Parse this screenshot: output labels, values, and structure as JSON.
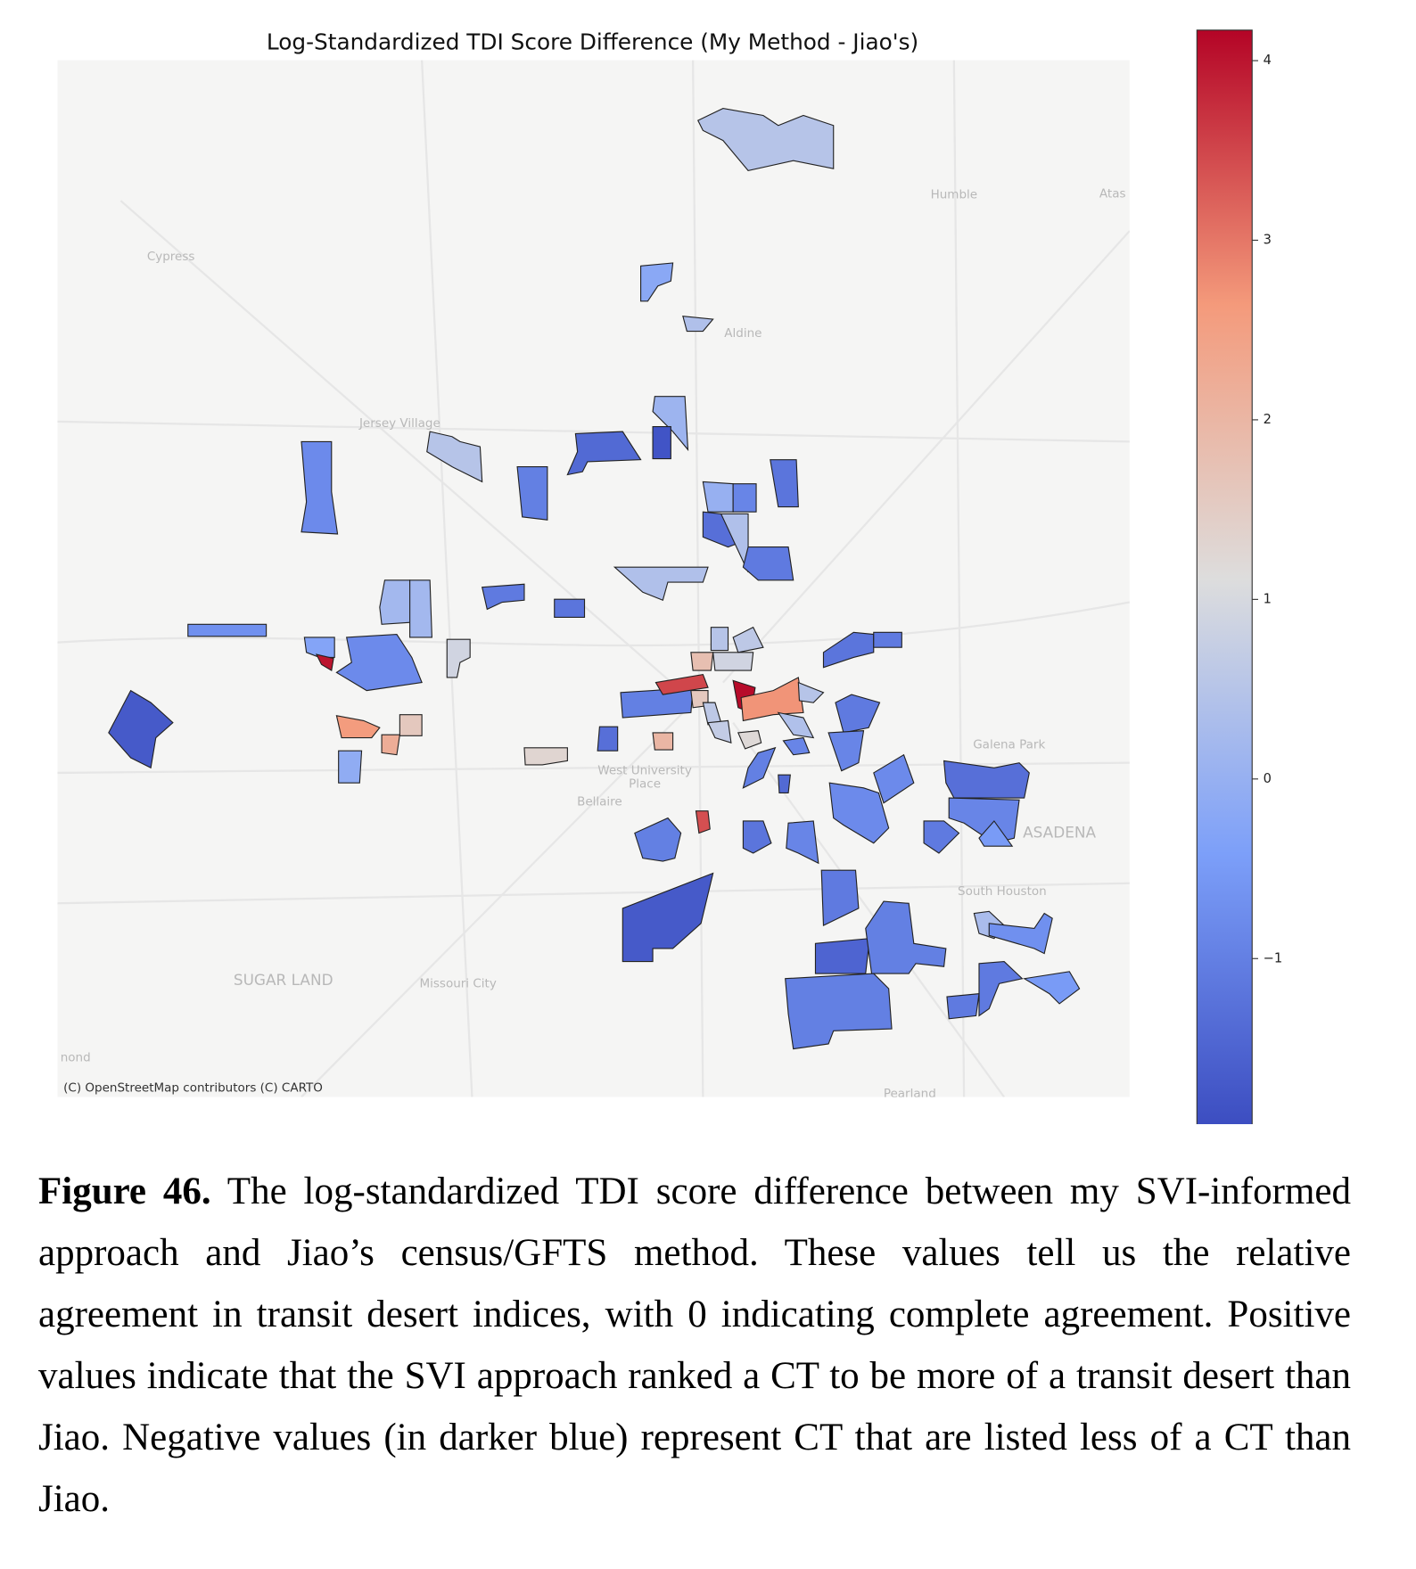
{
  "chart_data": {
    "type": "choropleth",
    "title": "Log-Standardized TDI Score Difference (My Method - Jiao's)",
    "colormap": "coolwarm",
    "clim": [
      -1.95,
      4.17
    ],
    "cticks": [
      {
        "value": -1,
        "label": "−1"
      },
      0,
      1,
      2,
      3,
      4
    ],
    "values": [
      0.5,
      -0.2,
      0.4,
      0.1,
      -1.8,
      -1.4,
      0.5,
      -0.8,
      -1.0,
      -1.2,
      0.0,
      -0.9,
      -1.3,
      0.4,
      -1.1,
      0.4,
      -1.1,
      -1.2,
      0.2,
      0.2,
      -0.7,
      -0.3,
      4.0,
      -0.8,
      0.9,
      -1.7,
      2.6,
      1.6,
      2.2,
      -0.1,
      1.3,
      -1.3,
      2.0,
      -1.0,
      3.5,
      1.8,
      0.9,
      0.5,
      0.6,
      4.1,
      1.6,
      0.6,
      0.7,
      2.7,
      0.5,
      0.4,
      -0.9,
      1.2,
      -1.0,
      -1.4,
      -1.2,
      -1.1,
      -1.1,
      -0.9,
      -0.8,
      -0.8,
      -1.3,
      -0.9,
      -0.5,
      -1.1,
      -1.0,
      3.4,
      -1.2,
      -0.9,
      -1.1,
      -1.7,
      -1.5,
      -1.0,
      -1.0,
      0.3,
      -0.7,
      -1.1,
      -0.5,
      -1.1
    ],
    "place_labels": [
      "Humble",
      "Atas",
      "Cypress",
      "Aldine",
      "Jersey Village",
      "West University",
      "Place",
      "Bellaire",
      "Galena Park",
      "ASADENA",
      "South Houston",
      "SUGAR LAND",
      "Missouri City",
      "Pearland",
      "nond"
    ],
    "attribution": "(C) OpenStreetMap contributors (C) CARTO"
  },
  "caption": {
    "label": "Figure 46.",
    "text": "The log-standardized TDI score difference between my SVI-informed approach and Jiao’s census/GFTS method. These values tell us the relative agreement in transit desert indices, with 0 indicating complete agreement. Positive values indicate that the SVI approach ranked a CT to be more of a transit desert than Jiao. Negative values (in darker blue) represent CT that are listed less of a CT than Jiao."
  }
}
